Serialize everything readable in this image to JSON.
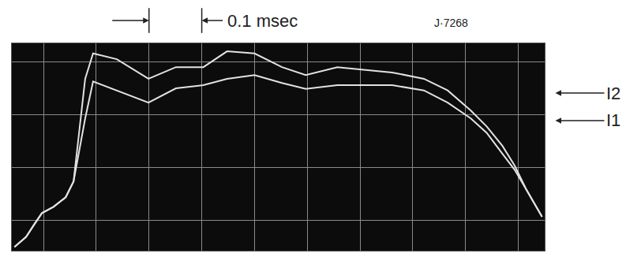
{
  "chart_data": {
    "type": "line",
    "annotations": [
      "0.1 msec",
      "J·7268"
    ],
    "x": [
      -0.055,
      -0.033,
      -0.018,
      -0.003,
      0.019,
      0.042,
      0.057,
      0.079,
      0.094,
      0.139,
      0.199,
      0.251,
      0.303,
      0.348,
      0.4,
      0.452,
      0.497,
      0.557,
      0.661,
      0.721,
      0.766,
      0.81,
      0.84,
      0.87,
      0.893,
      0.915,
      0.945
    ],
    "series": [
      {
        "name": "I2",
        "color": "#e2e2e2",
        "values": [
          0,
          0.19,
          0.42,
          0.64,
          0.76,
          0.94,
          1.24,
          3.18,
          3.66,
          3.55,
          3.18,
          3.4,
          3.4,
          3.7,
          3.66,
          3.4,
          3.25,
          3.4,
          3.3,
          3.18,
          2.96,
          2.58,
          2.28,
          1.91,
          1.54,
          1.09,
          0.57
        ]
      },
      {
        "name": "I1",
        "color": "#e2e2e2",
        "values": [
          0,
          0.19,
          0.42,
          0.64,
          0.76,
          0.94,
          1.24,
          2.43,
          3.13,
          2.96,
          2.73,
          3.0,
          3.06,
          3.18,
          3.25,
          3.1,
          2.99,
          3.06,
          3.06,
          2.96,
          2.73,
          2.43,
          2.16,
          1.76,
          1.46,
          1.09,
          0.57
        ]
      }
    ],
    "xlim": [
      -0.06,
      0.95
    ],
    "xticks": [
      0,
      0.1,
      0.2,
      0.3,
      0.4,
      0.5,
      0.6,
      0.7,
      0.8,
      0.9
    ],
    "ylim": [
      -0.07,
      3.85
    ],
    "yticks": [
      0.5,
      1.5,
      2.5,
      3.5
    ],
    "grid": true,
    "tick_labels": false
  }
}
